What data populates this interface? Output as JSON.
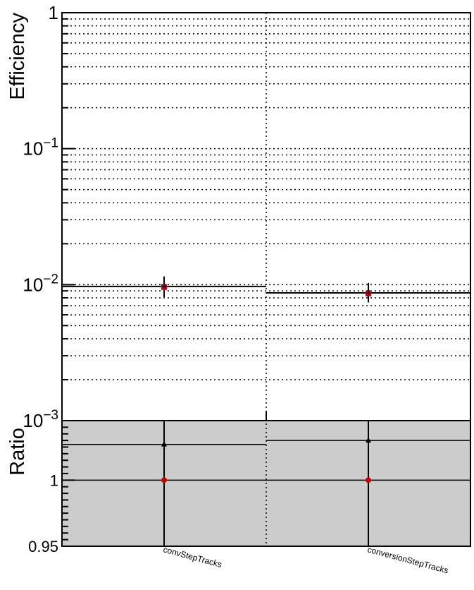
{
  "chart_data": [
    {
      "type": "scatter",
      "panel": "efficiency",
      "ylabel": "Efficiency",
      "yscale": "log",
      "ylim": [
        0.001,
        1
      ],
      "ytick_labels": [
        {
          "value": 1,
          "base": "1",
          "exp": ""
        },
        {
          "value": 0.1,
          "base": "10",
          "exp": "−1"
        },
        {
          "value": 0.01,
          "base": "10",
          "exp": "−2"
        },
        {
          "value": 0.001,
          "base": "10",
          "exp": "−3"
        }
      ],
      "grid": true,
      "categories": [
        "convStepTracks",
        "conversionStepTracks"
      ],
      "series": [
        {
          "marker": "circle",
          "color": "#000000",
          "values": [
            0.0097,
            0.0087
          ],
          "err_low": [
            0.0016,
            0.0013
          ],
          "err_high": [
            0.0018,
            0.0016
          ]
        },
        {
          "marker": "square",
          "color": "#cc0000",
          "values": [
            0.0096,
            0.0086
          ],
          "err_low": [
            0.0016,
            0.0013
          ],
          "err_high": [
            0.0018,
            0.0016
          ]
        }
      ],
      "step_levels": [
        0.0097,
        0.0087
      ]
    },
    {
      "type": "scatter",
      "panel": "ratio",
      "ylabel": "Ratio",
      "ylim": [
        0.95,
        1.045
      ],
      "ytick_labels": [
        {
          "value": 1,
          "label": "1"
        },
        {
          "value": 0.95,
          "label": "0.95"
        }
      ],
      "grid": true,
      "categories": [
        "convStepTracks",
        "conversionStepTracks"
      ],
      "series": [
        {
          "marker": "triangle",
          "color": "#000000",
          "values": [
            1.027,
            1.03
          ],
          "err_low": [
            0.1,
            0.1
          ],
          "err_high": [
            0.1,
            0.1
          ]
        },
        {
          "marker": "circle",
          "color": "#cc0000",
          "values": [
            1,
            1
          ],
          "err_low": [
            0.1,
            0.1
          ],
          "err_high": [
            0.1,
            0.1
          ]
        }
      ],
      "step_levels": [
        1.027,
        1.03
      ],
      "band_color": "#cccccc"
    }
  ]
}
